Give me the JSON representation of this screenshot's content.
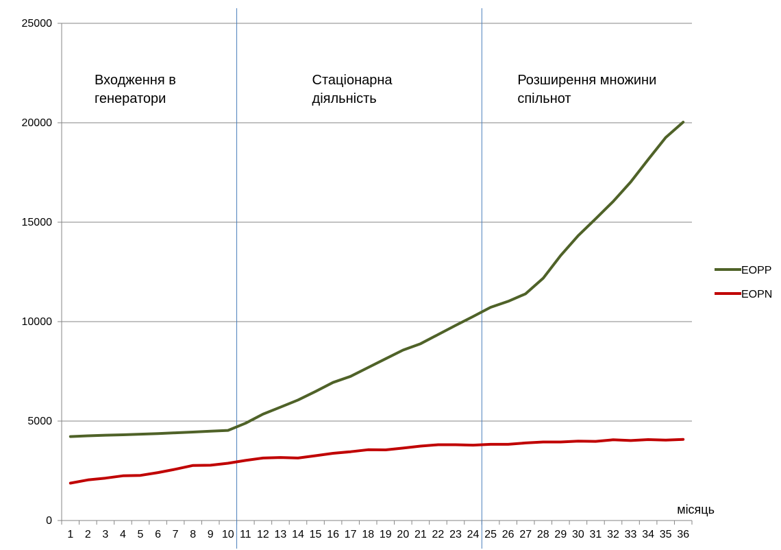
{
  "chart_data": {
    "type": "line",
    "xlabel": "місяць",
    "ylabel": "",
    "ylim": [
      0,
      25000
    ],
    "y_ticks": [
      0,
      5000,
      10000,
      15000,
      20000,
      25000
    ],
    "x": [
      1,
      2,
      3,
      4,
      5,
      6,
      7,
      8,
      9,
      10,
      11,
      12,
      13,
      14,
      15,
      16,
      17,
      18,
      19,
      20,
      21,
      22,
      23,
      24,
      25,
      26,
      27,
      28,
      29,
      30,
      31,
      32,
      33,
      34,
      35,
      36
    ],
    "grid": "horizontal",
    "legend_position": "right",
    "series": [
      {
        "name": "EOPP",
        "color": "#4f6228",
        "values": [
          4220,
          4260,
          4290,
          4310,
          4340,
          4370,
          4410,
          4450,
          4490,
          4530,
          4890,
          5350,
          5700,
          6060,
          6490,
          6940,
          7250,
          7690,
          8130,
          8570,
          8890,
          9350,
          9810,
          10260,
          10720,
          11020,
          11400,
          12180,
          13320,
          14320,
          15170,
          16040,
          17020,
          18150,
          19260,
          20030
        ]
      },
      {
        "name": "EOPN",
        "color": "#c00000",
        "values": [
          1880,
          2040,
          2130,
          2250,
          2270,
          2410,
          2580,
          2770,
          2780,
          2880,
          3020,
          3140,
          3170,
          3140,
          3260,
          3380,
          3460,
          3560,
          3550,
          3640,
          3740,
          3810,
          3810,
          3790,
          3830,
          3830,
          3900,
          3950,
          3950,
          3990,
          3980,
          4060,
          4020,
          4070,
          4040,
          4080
        ]
      }
    ],
    "phase_dividers": [
      10,
      24
    ],
    "annotations": [
      {
        "lines": [
          "Входження в",
          "генератори"
        ]
      },
      {
        "lines": [
          "Стаціонарна",
          "діяльність"
        ]
      },
      {
        "lines": [
          "Розширення множини",
          "спільнот"
        ]
      }
    ],
    "colors": {
      "grid": "#868686",
      "axis": "#868686",
      "divider": "#4a7ebb"
    }
  }
}
